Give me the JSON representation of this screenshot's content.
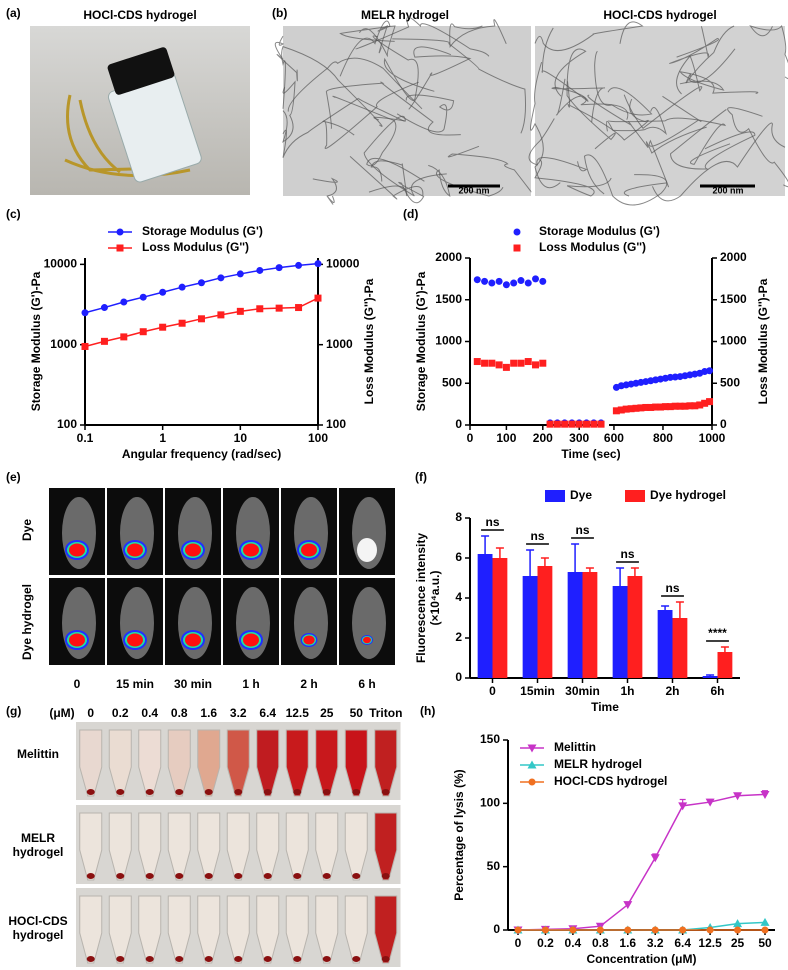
{
  "panels": {
    "a": {
      "label": "(a)",
      "title": "HOCl-CDS hydrogel"
    },
    "b": {
      "label": "(b)",
      "titles": [
        "MELR hydrogel",
        "HOCl-CDS hydrogel"
      ],
      "scale_bars": [
        "200 nm",
        "200 nm"
      ]
    },
    "e": {
      "label": "(e)",
      "rows": [
        "Dye",
        "Dye hydrogel"
      ],
      "columns": [
        "0",
        "15 min",
        "30 min",
        "1 h",
        "2 h",
        "6 h"
      ]
    },
    "g": {
      "label": "(g)",
      "unit": "(μM)",
      "columns": [
        "0",
        "0.2",
        "0.4",
        "0.8",
        "1.6",
        "3.2",
        "6.4",
        "12.5",
        "25",
        "50",
        "Triton"
      ],
      "rows": [
        "Melittin",
        "MELR hydrogel",
        "HOCl-CDS hydrogel"
      ]
    }
  },
  "chart_data": [
    {
      "type": "line",
      "panel_label": "(c)",
      "x": [
        0.1,
        0.178,
        0.316,
        0.562,
        1,
        1.78,
        3.16,
        5.62,
        10,
        17.8,
        31.6,
        56.2,
        100
      ],
      "xlim": [
        0.1,
        100
      ],
      "xticks": [
        0.1,
        1,
        10,
        100
      ],
      "xscale": "log",
      "ylim": [
        100,
        12000
      ],
      "yticks": [
        100,
        1000,
        10000
      ],
      "yscale": "log",
      "y2lim": [
        100,
        12000
      ],
      "y2ticks": [
        100,
        1000,
        10000
      ],
      "xlabel": "Angular frequency (rad/sec)",
      "ylabel": "Storage Modulus (G')-Pa",
      "y2label": "Loss Modulus (G'')-Pa",
      "series": [
        {
          "name": "Storage Modulus (G')",
          "color": "#1f1fff",
          "marker": "circle",
          "values": [
            2500,
            2900,
            3400,
            3900,
            4500,
            5200,
            5900,
            6800,
            7600,
            8400,
            9100,
            9700,
            10200
          ]
        },
        {
          "name": "Loss Modulus (G'')",
          "color": "#ff1f1f",
          "marker": "square",
          "axis": "y2",
          "values": [
            950,
            1100,
            1250,
            1450,
            1650,
            1850,
            2100,
            2350,
            2600,
            2800,
            2850,
            2900,
            3800
          ]
        }
      ]
    },
    {
      "type": "scatter",
      "panel_label": "(d)",
      "x": [
        20,
        40,
        60,
        80,
        100,
        120,
        140,
        160,
        180,
        200,
        220,
        240,
        260,
        280,
        300,
        320,
        340,
        360,
        610,
        630,
        650,
        670,
        690,
        710,
        730,
        750,
        770,
        790,
        810,
        830,
        850,
        870,
        890,
        910,
        930,
        950,
        970,
        990
      ],
      "xlim": [
        0,
        1000
      ],
      "x_break": [
        360,
        580
      ],
      "xticks": [
        0,
        100,
        200,
        300,
        600,
        800,
        1000
      ],
      "ylim": [
        0,
        2000
      ],
      "yticks": [
        0,
        500,
        1000,
        1500,
        2000
      ],
      "y2lim": [
        0,
        2000
      ],
      "y2ticks": [
        0,
        500,
        1000,
        1500,
        2000
      ],
      "xlabel": "Time (sec)",
      "ylabel": "Storage Modulus (G')-Pa",
      "y2label": "Loss Modulus (G'')-Pa",
      "series": [
        {
          "name": "Storage Modulus (G')",
          "color": "#1f1fff",
          "marker": "circle",
          "values": [
            1740,
            1720,
            1700,
            1720,
            1680,
            1700,
            1730,
            1700,
            1750,
            1720,
            25,
            25,
            25,
            25,
            25,
            25,
            25,
            25,
            450,
            470,
            480,
            490,
            500,
            510,
            520,
            530,
            540,
            550,
            560,
            570,
            575,
            580,
            590,
            600,
            610,
            620,
            640,
            650
          ]
        },
        {
          "name": "Loss Modulus (G'')",
          "color": "#ff1f1f",
          "marker": "square",
          "axis": "y2",
          "values": [
            760,
            740,
            740,
            720,
            690,
            740,
            740,
            760,
            720,
            740,
            10,
            10,
            10,
            10,
            10,
            10,
            10,
            10,
            170,
            180,
            190,
            195,
            200,
            205,
            210,
            210,
            215,
            215,
            220,
            220,
            225,
            225,
            225,
            230,
            230,
            240,
            260,
            280
          ]
        }
      ]
    },
    {
      "type": "bar",
      "panel_label": "(f)",
      "categories": [
        "0",
        "15min",
        "30min",
        "1h",
        "2h",
        "6h"
      ],
      "ylim": [
        0,
        8
      ],
      "yticks": [
        0,
        2,
        4,
        6,
        8
      ],
      "xlabel": "Time",
      "ylabel": [
        "Fluorescence intensity",
        "(×10⁴a.u.)"
      ],
      "significance": [
        "ns",
        "ns",
        "ns",
        "ns",
        "ns",
        "****"
      ],
      "series": [
        {
          "name": "Dye",
          "color": "#1f1fff",
          "values": [
            6.2,
            5.1,
            5.3,
            4.6,
            3.4,
            0.1
          ],
          "errors": [
            0.9,
            1.3,
            1.4,
            0.9,
            0.2,
            0.05
          ]
        },
        {
          "name": "Dye hydrogel",
          "color": "#ff1f1f",
          "values": [
            6.0,
            5.6,
            5.3,
            5.1,
            3.0,
            1.3
          ],
          "errors": [
            0.5,
            0.4,
            0.2,
            0.4,
            0.8,
            0.25
          ]
        }
      ]
    },
    {
      "type": "line",
      "panel_label": "(h)",
      "categories": [
        "0",
        "0.2",
        "0.4",
        "0.8",
        "1.6",
        "3.2",
        "6.4",
        "12.5",
        "25",
        "50"
      ],
      "ylim": [
        0,
        150
      ],
      "yticks": [
        0,
        50,
        100,
        150
      ],
      "xlabel": "Concentration (μM)",
      "ylabel": "Percentage of lysis (%)",
      "series": [
        {
          "name": "Melittin",
          "color": "#c733c7",
          "marker": "triangle-down",
          "values": [
            0,
            0.5,
            1,
            3,
            20,
            57,
            98,
            101,
            106,
            107
          ],
          "errors": [
            0,
            0.5,
            0.5,
            1,
            1.5,
            3,
            5,
            2,
            2,
            3
          ]
        },
        {
          "name": "MELR hydrogel",
          "color": "#33c7c7",
          "marker": "triangle-up",
          "values": [
            0,
            0,
            0,
            0,
            0,
            0,
            0,
            2,
            5,
            6
          ]
        },
        {
          "name": "HOCl-CDS hydrogel",
          "color": "#f07020",
          "marker": "circle",
          "values": [
            0,
            0,
            0,
            0,
            0,
            0,
            0,
            0,
            0,
            0
          ]
        }
      ]
    }
  ]
}
